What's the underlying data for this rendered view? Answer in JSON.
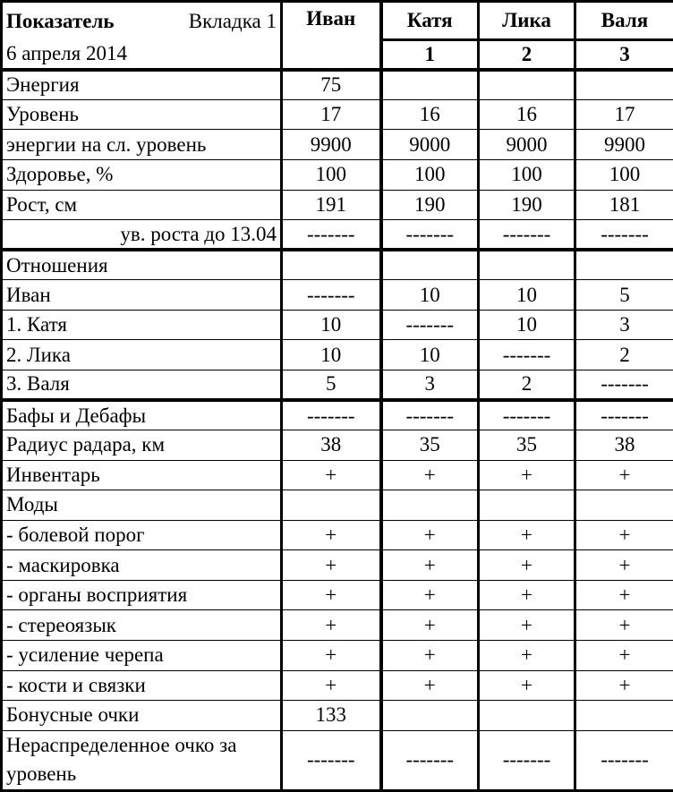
{
  "header": {
    "title": "Показатель",
    "tab": "Вкладка 1",
    "date": "6 апреля 2014",
    "columns": [
      {
        "name": "Иван",
        "number": ""
      },
      {
        "name": "Катя",
        "number": "1"
      },
      {
        "name": "Лика",
        "number": "2"
      },
      {
        "name": "Валя",
        "number": "3"
      }
    ]
  },
  "sections": [
    {
      "rows": [
        {
          "label": "Энергия",
          "values": [
            "75",
            "",
            "",
            ""
          ]
        },
        {
          "label": "Уровень",
          "values": [
            "17",
            "16",
            "16",
            "17"
          ]
        },
        {
          "label": "энергии на сл. уровень",
          "values": [
            "9900",
            "9000",
            "9000",
            "9900"
          ]
        },
        {
          "label": "Здоровье, %",
          "values": [
            "100",
            "100",
            "100",
            "100"
          ]
        },
        {
          "label": "Рост, см",
          "values": [
            "191",
            "190",
            "190",
            "181"
          ]
        },
        {
          "label": "ув. роста до 13.04",
          "indent": true,
          "values": [
            "-------",
            "-------",
            "-------",
            "-------"
          ]
        }
      ]
    },
    {
      "rows": [
        {
          "label": "Отношения",
          "values": [
            "",
            "",
            "",
            ""
          ]
        },
        {
          "label": "Иван",
          "values": [
            "-------",
            "10",
            "10",
            "5"
          ]
        },
        {
          "label": "1. Катя",
          "values": [
            "10",
            "-------",
            "10",
            "3"
          ]
        },
        {
          "label": "2. Лика",
          "values": [
            "10",
            "10",
            "-------",
            "2"
          ]
        },
        {
          "label": "3. Валя",
          "values": [
            "5",
            "3",
            "2",
            "-------"
          ]
        }
      ]
    },
    {
      "rows": [
        {
          "label": "Бафы и Дебафы",
          "values": [
            "-------",
            "-------",
            "-------",
            "-------"
          ]
        },
        {
          "label": "Радиус радара, км",
          "values": [
            "38",
            "35",
            "35",
            "38"
          ]
        },
        {
          "label": "Инвентарь",
          "values": [
            "+",
            "+",
            "+",
            "+"
          ]
        },
        {
          "label": "Моды",
          "values": [
            "",
            "",
            "",
            ""
          ]
        },
        {
          "label": "- болевой порог",
          "values": [
            "+",
            "+",
            "+",
            "+"
          ]
        },
        {
          "label": "- маскировка",
          "values": [
            "+",
            "+",
            "+",
            "+"
          ]
        },
        {
          "label": "- органы восприятия",
          "values": [
            "+",
            "+",
            "+",
            "+"
          ]
        },
        {
          "label": "- стереоязык",
          "values": [
            "+",
            "+",
            "+",
            "+"
          ]
        },
        {
          "label": "- усиление черепа",
          "values": [
            "+",
            "+",
            "+",
            "+"
          ]
        },
        {
          "label": "- кости и связки",
          "values": [
            "+",
            "+",
            "+",
            "+"
          ]
        },
        {
          "label": "Бонусные очки",
          "values": [
            "133",
            "",
            "",
            ""
          ]
        },
        {
          "label": "Нераспределенное очко за уровень",
          "wrap": true,
          "values": [
            "-------",
            "-------",
            "-------",
            "-------"
          ]
        }
      ]
    }
  ]
}
